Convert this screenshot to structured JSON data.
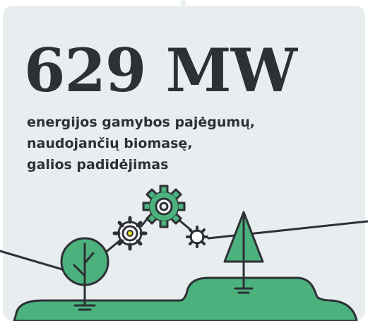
{
  "headline": "629 MW",
  "description": [
    "energijos gamybos pajėgumų,",
    "naudojančių biomasę,",
    "galios padidėjimas"
  ]
}
